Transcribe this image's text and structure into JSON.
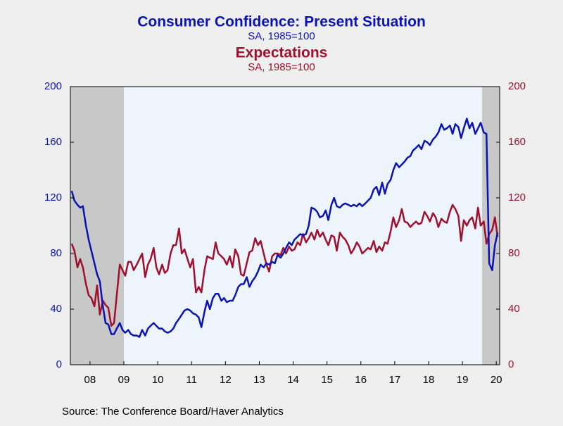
{
  "chart_data": {
    "type": "line",
    "title": "Consumer Confidence: Present Situation",
    "subtitle": "SA, 1985=100",
    "title2": "Expectations",
    "subtitle2": "SA, 1985=100",
    "source": "Source:  The Conference Board/Haver Analytics",
    "x": [
      2007.96,
      2008.04,
      2008.13,
      2008.21,
      2008.29,
      2008.38,
      2008.46,
      2008.54,
      2008.63,
      2008.71,
      2008.79,
      2008.88,
      2008.96,
      2009.04,
      2009.13,
      2009.21,
      2009.29,
      2009.38,
      2009.46,
      2009.54,
      2009.63,
      2009.71,
      2009.79,
      2009.88,
      2009.96,
      2010.04,
      2010.13,
      2010.21,
      2010.29,
      2010.38,
      2010.46,
      2010.54,
      2010.63,
      2010.71,
      2010.79,
      2010.88,
      2010.96,
      2011.04,
      2011.13,
      2011.21,
      2011.29,
      2011.38,
      2011.46,
      2011.54,
      2011.63,
      2011.71,
      2011.79,
      2011.88,
      2011.96,
      2012.04,
      2012.13,
      2012.21,
      2012.29,
      2012.38,
      2012.46,
      2012.54,
      2012.63,
      2012.71,
      2012.79,
      2012.88,
      2012.96,
      2013.04,
      2013.13,
      2013.21,
      2013.29,
      2013.38,
      2013.46,
      2013.54,
      2013.63,
      2013.71,
      2013.79,
      2013.88,
      2013.96,
      2014.04,
      2014.13,
      2014.21,
      2014.29,
      2014.38,
      2014.46,
      2014.54,
      2014.63,
      2014.71,
      2014.79,
      2014.88,
      2014.96,
      2015.04,
      2015.13,
      2015.21,
      2015.29,
      2015.38,
      2015.46,
      2015.54,
      2015.63,
      2015.71,
      2015.79,
      2015.88,
      2015.96,
      2016.04,
      2016.13,
      2016.21,
      2016.29,
      2016.38,
      2016.46,
      2016.54,
      2016.63,
      2016.71,
      2016.79,
      2016.88,
      2016.96,
      2017.04,
      2017.13,
      2017.21,
      2017.29,
      2017.38,
      2017.46,
      2017.54,
      2017.63,
      2017.71,
      2017.79,
      2017.88,
      2017.96,
      2018.04,
      2018.13,
      2018.21,
      2018.29,
      2018.38,
      2018.46,
      2018.54,
      2018.63,
      2018.71,
      2018.79,
      2018.88,
      2018.96,
      2019.04,
      2019.13,
      2019.21,
      2019.29,
      2019.38,
      2019.46,
      2019.54,
      2019.63,
      2019.71,
      2019.79,
      2019.88,
      2019.96,
      2020.04,
      2020.13,
      2020.21,
      2020.29,
      2020.38,
      2020.46,
      2020.54
    ],
    "series": [
      {
        "name": "Consumer Confidence: Present Situation",
        "color": "#0a14b4",
        "axis": "y",
        "values": [
          125,
          118,
          115,
          113,
          114,
          100,
          90,
          82,
          73,
          65,
          60,
          42,
          30,
          29,
          22,
          22,
          26,
          30,
          25,
          23,
          25,
          22,
          21,
          21,
          20,
          25,
          21,
          26,
          28,
          30,
          28,
          26,
          26,
          24,
          23,
          24,
          26,
          30,
          33,
          36,
          39,
          40,
          39,
          37,
          36,
          34,
          27,
          38,
          46,
          40,
          48,
          51,
          51,
          46,
          48,
          45,
          46,
          46,
          50,
          56,
          58,
          58,
          63,
          56,
          60,
          63,
          67,
          72,
          70,
          73,
          72,
          74,
          73,
          79,
          77,
          80,
          84,
          88,
          86,
          90,
          92,
          94,
          93,
          94,
          100,
          113,
          112,
          110,
          106,
          107,
          111,
          104,
          115,
          120,
          114,
          113,
          115,
          116,
          115,
          114,
          115,
          114,
          116,
          114,
          116,
          118,
          120,
          126,
          128,
          122,
          131,
          123,
          130,
          133,
          140,
          145,
          142,
          144,
          146,
          149,
          150,
          154,
          156,
          158,
          155,
          161,
          160,
          158,
          162,
          164,
          167,
          173,
          169,
          170,
          172,
          166,
          173,
          171,
          163,
          170,
          177,
          170,
          174,
          166,
          170,
          174,
          167,
          166,
          73,
          68,
          86,
          95
        ]
      },
      {
        "name": "Expectations",
        "color": "#a0102e",
        "axis": "y2",
        "values": [
          87,
          82,
          70,
          76,
          70,
          58,
          50,
          48,
          42,
          57,
          36,
          46,
          43,
          41,
          28,
          30,
          50,
          72,
          68,
          64,
          74,
          74,
          68,
          72,
          76,
          80,
          63,
          72,
          76,
          84,
          70,
          65,
          72,
          66,
          68,
          80,
          86,
          86,
          98,
          80,
          83,
          76,
          70,
          76,
          52,
          56,
          52,
          68,
          78,
          77,
          76,
          88,
          80,
          78,
          76,
          72,
          78,
          70,
          83,
          78,
          65,
          64,
          73,
          81,
          82,
          91,
          86,
          89,
          80,
          72,
          67,
          78,
          80,
          80,
          79,
          84,
          80,
          85,
          82,
          83,
          88,
          86,
          94,
          88,
          91,
          95,
          90,
          97,
          92,
          95,
          90,
          86,
          93,
          92,
          82,
          95,
          92,
          90,
          86,
          80,
          83,
          88,
          85,
          80,
          82,
          84,
          83,
          89,
          81,
          85,
          82,
          88,
          87,
          96,
          106,
          99,
          104,
          112,
          103,
          102,
          99,
          101,
          103,
          101,
          102,
          110,
          107,
          103,
          109,
          106,
          99,
          105,
          103,
          102,
          110,
          115,
          112,
          107,
          89,
          104,
          100,
          104,
          106,
          98,
          113,
          100,
          103,
          87,
          94,
          97,
          106,
          92
        ]
      }
    ],
    "recessions": [
      [
        2007.92,
        2009.5
      ],
      [
        2020.08,
        2020.6
      ]
    ],
    "xlim": [
      2007.92,
      2020.6
    ],
    "xticks": [
      {
        "value": 2008.5,
        "label": "08"
      },
      {
        "value": 2009.5,
        "label": "09"
      },
      {
        "value": 2010.5,
        "label": "10"
      },
      {
        "value": 2011.5,
        "label": "11"
      },
      {
        "value": 2012.5,
        "label": "12"
      },
      {
        "value": 2013.5,
        "label": "13"
      },
      {
        "value": 2014.5,
        "label": "14"
      },
      {
        "value": 2015.5,
        "label": "15"
      },
      {
        "value": 2016.5,
        "label": "16"
      },
      {
        "value": 2017.5,
        "label": "17"
      },
      {
        "value": 2018.5,
        "label": "18"
      },
      {
        "value": 2019.5,
        "label": "19"
      },
      {
        "value": 2020.5,
        "label": "20"
      }
    ],
    "ylim": [
      0,
      200
    ],
    "yticks": [
      0,
      40,
      80,
      120,
      160,
      200
    ],
    "y2lim": [
      0,
      200
    ],
    "y2ticks": [
      0,
      40,
      80,
      120,
      160,
      200
    ],
    "grid": false
  }
}
